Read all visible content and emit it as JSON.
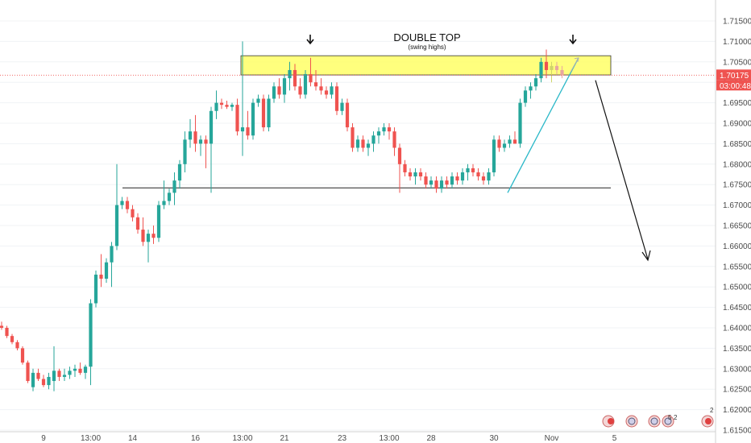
{
  "chart_data": {
    "type": "candlestick",
    "ylim": [
      1.615,
      1.715
    ],
    "y_ticks": [
      "1.71500",
      "1.71000",
      "1.70500",
      "1.70000",
      "1.69500",
      "1.69000",
      "1.68500",
      "1.68000",
      "1.67500",
      "1.67000",
      "1.66500",
      "1.66000",
      "1.65500",
      "1.65000",
      "1.64500",
      "1.64000",
      "1.63500",
      "1.63000",
      "1.62500",
      "1.62000",
      "1.61500"
    ],
    "x_ticks": [
      {
        "label": "9",
        "i": 8
      },
      {
        "label": "13:00",
        "i": 17
      },
      {
        "label": "14",
        "i": 25
      },
      {
        "label": "16",
        "i": 37
      },
      {
        "label": "13:00",
        "i": 46
      },
      {
        "label": "21",
        "i": 54
      },
      {
        "label": "23",
        "i": 65
      },
      {
        "label": "13:00",
        "i": 74
      },
      {
        "label": "28",
        "i": 82
      },
      {
        "label": "30",
        "i": 94
      },
      {
        "label": "Nov",
        "i": 105
      },
      {
        "label": "5",
        "i": 117
      }
    ],
    "current_price": "1.70175",
    "countdown": "03:00:48",
    "colors": {
      "up": "#26a69a",
      "down": "#ef5350",
      "zone": "#ffff66",
      "trend": "#2bb8c8",
      "priceline": "#ef5350"
    },
    "candles": [
      [
        1.6405,
        1.6415,
        1.6395,
        1.64
      ],
      [
        1.64,
        1.6405,
        1.6375,
        1.638
      ],
      [
        1.638,
        1.6385,
        1.636,
        1.6365
      ],
      [
        1.6365,
        1.637,
        1.6345,
        1.635
      ],
      [
        1.635,
        1.6355,
        1.631,
        1.6315
      ],
      [
        1.6315,
        1.632,
        1.6265,
        1.627
      ],
      [
        1.6255,
        1.63,
        1.6245,
        1.629
      ],
      [
        1.629,
        1.63,
        1.627,
        1.6275
      ],
      [
        1.6275,
        1.6285,
        1.6255,
        1.626
      ],
      [
        1.626,
        1.629,
        1.625,
        1.628
      ],
      [
        1.627,
        1.6355,
        1.6245,
        1.6295
      ],
      [
        1.6295,
        1.63,
        1.627,
        1.628
      ],
      [
        1.628,
        1.63,
        1.627,
        1.6285
      ],
      [
        1.6285,
        1.6305,
        1.6275,
        1.6295
      ],
      [
        1.6295,
        1.631,
        1.628,
        1.63
      ],
      [
        1.63,
        1.6315,
        1.6285,
        1.629
      ],
      [
        1.629,
        1.631,
        1.6275,
        1.6305
      ],
      [
        1.6305,
        1.647,
        1.626,
        1.646
      ],
      [
        1.646,
        1.654,
        1.645,
        1.653
      ],
      [
        1.653,
        1.658,
        1.65,
        1.652
      ],
      [
        1.652,
        1.657,
        1.651,
        1.656
      ],
      [
        1.656,
        1.661,
        1.65,
        1.66
      ],
      [
        1.66,
        1.68,
        1.659,
        1.67
      ],
      [
        1.67,
        1.672,
        1.669,
        1.671
      ],
      [
        1.671,
        1.672,
        1.668,
        1.669
      ],
      [
        1.669,
        1.67,
        1.666,
        1.667
      ],
      [
        1.667,
        1.668,
        1.663,
        1.664
      ],
      [
        1.664,
        1.667,
        1.66,
        1.661
      ],
      [
        1.661,
        1.664,
        1.656,
        1.663
      ],
      [
        1.663,
        1.665,
        1.6605,
        1.662
      ],
      [
        1.662,
        1.671,
        1.661,
        1.67
      ],
      [
        1.67,
        1.676,
        1.669,
        1.671
      ],
      [
        1.671,
        1.674,
        1.67,
        1.673
      ],
      [
        1.673,
        1.678,
        1.67,
        1.676
      ],
      [
        1.676,
        1.681,
        1.674,
        1.68
      ],
      [
        1.68,
        1.688,
        1.678,
        1.686
      ],
      [
        1.686,
        1.691,
        1.684,
        1.688
      ],
      [
        1.688,
        1.692,
        1.683,
        1.685
      ],
      [
        1.685,
        1.687,
        1.682,
        1.686
      ],
      [
        1.686,
        1.687,
        1.679,
        1.685
      ],
      [
        1.685,
        1.694,
        1.673,
        1.693
      ],
      [
        1.693,
        1.698,
        1.691,
        1.695
      ],
      [
        1.695,
        1.696,
        1.6935,
        1.6945
      ],
      [
        1.6945,
        1.6955,
        1.6935,
        1.694
      ],
      [
        1.694,
        1.695,
        1.693,
        1.6945
      ],
      [
        1.6945,
        1.696,
        1.687,
        1.688
      ],
      [
        1.688,
        1.71,
        1.682,
        1.689
      ],
      [
        1.689,
        1.693,
        1.686,
        1.687
      ],
      [
        1.687,
        1.696,
        1.686,
        1.695
      ],
      [
        1.695,
        1.697,
        1.694,
        1.696
      ],
      [
        1.696,
        1.697,
        1.688,
        1.689
      ],
      [
        1.689,
        1.697,
        1.688,
        1.696
      ],
      [
        1.696,
        1.7,
        1.695,
        1.699
      ],
      [
        1.699,
        1.701,
        1.696,
        1.697
      ],
      [
        1.697,
        1.702,
        1.695,
        1.701
      ],
      [
        1.701,
        1.705,
        1.698,
        1.703
      ],
      [
        1.703,
        1.7045,
        1.698,
        1.699
      ],
      [
        1.699,
        1.701,
        1.696,
        1.697
      ],
      [
        1.697,
        1.703,
        1.696,
        1.702
      ],
      [
        1.702,
        1.706,
        1.699,
        1.7
      ],
      [
        1.7,
        1.703,
        1.698,
        1.699
      ],
      [
        1.699,
        1.701,
        1.697,
        1.698
      ],
      [
        1.698,
        1.699,
        1.696,
        1.697
      ],
      [
        1.697,
        1.7,
        1.696,
        1.699
      ],
      [
        1.699,
        1.7,
        1.692,
        1.693
      ],
      [
        1.693,
        1.696,
        1.692,
        1.695
      ],
      [
        1.695,
        1.696,
        1.688,
        1.689
      ],
      [
        1.689,
        1.69,
        1.683,
        1.684
      ],
      [
        1.684,
        1.687,
        1.683,
        1.686
      ],
      [
        1.686,
        1.687,
        1.683,
        1.684
      ],
      [
        1.684,
        1.686,
        1.682,
        1.685
      ],
      [
        1.685,
        1.688,
        1.683,
        1.687
      ],
      [
        1.687,
        1.689,
        1.685,
        1.688
      ],
      [
        1.688,
        1.69,
        1.687,
        1.689
      ],
      [
        1.689,
        1.69,
        1.686,
        1.688
      ],
      [
        1.688,
        1.689,
        1.682,
        1.684
      ],
      [
        1.684,
        1.685,
        1.673,
        1.68
      ],
      [
        1.68,
        1.681,
        1.677,
        1.678
      ],
      [
        1.678,
        1.679,
        1.676,
        1.677
      ],
      [
        1.677,
        1.679,
        1.675,
        1.678
      ],
      [
        1.678,
        1.679,
        1.676,
        1.677
      ],
      [
        1.677,
        1.678,
        1.674,
        1.675
      ],
      [
        1.675,
        1.677,
        1.674,
        1.676
      ],
      [
        1.676,
        1.677,
        1.673,
        1.674
      ],
      [
        1.674,
        1.677,
        1.673,
        1.676
      ],
      [
        1.676,
        1.677,
        1.674,
        1.675
      ],
      [
        1.675,
        1.678,
        1.674,
        1.677
      ],
      [
        1.677,
        1.678,
        1.675,
        1.676
      ],
      [
        1.676,
        1.679,
        1.675,
        1.678
      ],
      [
        1.678,
        1.68,
        1.676,
        1.679
      ],
      [
        1.679,
        1.68,
        1.677,
        1.678
      ],
      [
        1.678,
        1.679,
        1.676,
        1.677
      ],
      [
        1.677,
        1.678,
        1.675,
        1.676
      ],
      [
        1.676,
        1.679,
        1.675,
        1.678
      ],
      [
        1.678,
        1.687,
        1.677,
        1.686
      ],
      [
        1.686,
        1.687,
        1.683,
        1.684
      ],
      [
        1.684,
        1.686,
        1.683,
        1.685
      ],
      [
        1.685,
        1.687,
        1.684,
        1.686
      ],
      [
        1.686,
        1.688,
        1.685,
        1.685
      ],
      [
        1.685,
        1.696,
        1.684,
        1.695
      ],
      [
        1.695,
        1.699,
        1.694,
        1.698
      ],
      [
        1.698,
        1.7,
        1.696,
        1.699
      ],
      [
        1.699,
        1.702,
        1.698,
        1.701
      ],
      [
        1.701,
        1.706,
        1.7,
        1.705
      ],
      [
        1.705,
        1.708,
        1.701,
        1.703
      ],
      [
        1.703,
        1.705,
        1.7,
        1.704
      ],
      [
        1.704,
        1.705,
        1.702,
        1.703
      ],
      [
        1.703,
        1.704,
        1.701,
        1.7017
      ]
    ],
    "annotations": {
      "title": "DOUBLE TOP",
      "subtitle": "(swing highs)"
    }
  }
}
